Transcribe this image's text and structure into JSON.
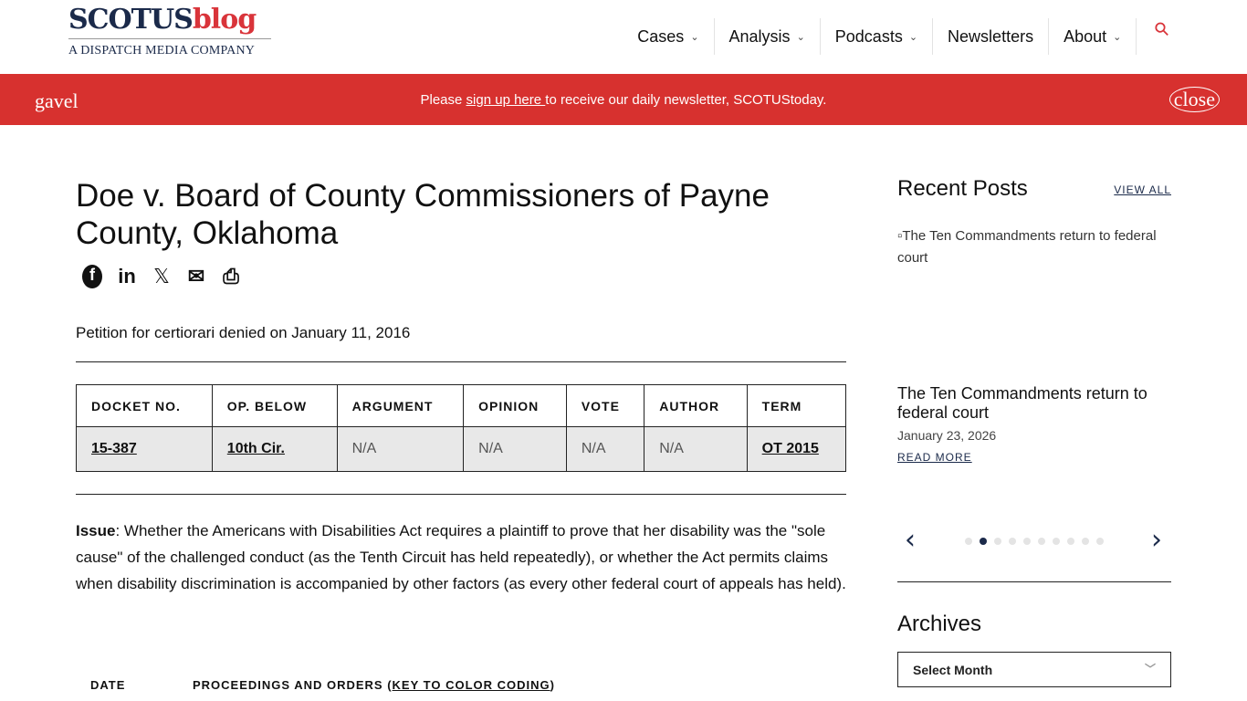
{
  "header": {
    "logo_main": "SCOTUS",
    "logo_accent": "blog",
    "logo_sub": "A DISPATCH MEDIA COMPANY",
    "nav": [
      {
        "label": "Cases",
        "dropdown": true
      },
      {
        "label": "Analysis",
        "dropdown": true
      },
      {
        "label": "Podcasts",
        "dropdown": true
      },
      {
        "label": "Newsletters",
        "dropdown": false
      },
      {
        "label": "About",
        "dropdown": true
      }
    ]
  },
  "banner": {
    "icon_text": "gavel",
    "pre": "Please ",
    "link": "sign up here ",
    "post": "to receive our daily newsletter, SCOTUStoday.",
    "close": "close",
    "color": "#d7312f"
  },
  "case": {
    "title": "Doe v. Board of County Commissioners of Payne County, Oklahoma",
    "status": "Petition for certiorari denied on January 11, 2016",
    "columns": [
      "DOCKET NO.",
      "OP. BELOW",
      "ARGUMENT",
      "OPINION",
      "VOTE",
      "AUTHOR",
      "TERM"
    ],
    "values": [
      "15-387",
      "10th Cir.",
      "N/A",
      "N/A",
      "N/A",
      "N/A",
      "OT 2015"
    ],
    "issue_label": "Issue",
    "issue": ": Whether the Americans with Disabilities Act requires a plaintiff to prove that her disability was the \"sole cause\" of the challenged conduct (as the Tenth Circuit has held repeatedly), or whether the Act permits claims when disability discrimination is accompanied by other factors (as every other federal court of appeals has held).",
    "date_header": "DATE",
    "proc_header": "PROCEEDINGS AND ORDERS (",
    "proc_link": "KEY TO COLOR CODING",
    "proc_end": ")"
  },
  "sidebar": {
    "recent_title": "Recent Posts",
    "view_all": "VIEW ALL",
    "image_alt": "The Ten Commandments return to federal court",
    "post_title": "The Ten Commandments return to federal court",
    "post_date": "January 23, 2026",
    "read_more": "READ MORE",
    "slides": 10,
    "active_slide": 2,
    "archives_title": "Archives",
    "archives_select": "Select Month"
  }
}
